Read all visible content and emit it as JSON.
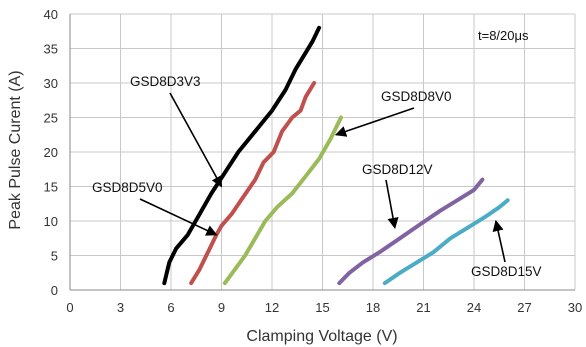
{
  "chart_data": {
    "type": "line",
    "title": "",
    "xlabel": "Clamping Voltage (V)",
    "ylabel": "Peak  Pulse Curent (A)",
    "xlim": [
      0,
      30
    ],
    "ylim": [
      0,
      40
    ],
    "xticks": [
      0,
      3,
      6,
      9,
      12,
      15,
      18,
      21,
      24,
      27,
      30
    ],
    "yticks": [
      0,
      5,
      10,
      15,
      20,
      25,
      30,
      35,
      40
    ],
    "grid": true,
    "annotation": "t=8/20μs",
    "series": [
      {
        "name": "GSD8D3V3",
        "color": "#000000",
        "points": [
          [
            5.6,
            1
          ],
          [
            5.9,
            4
          ],
          [
            6.3,
            6
          ],
          [
            7.0,
            8
          ],
          [
            7.7,
            11
          ],
          [
            8.4,
            14
          ],
          [
            9.2,
            17
          ],
          [
            10.0,
            20
          ],
          [
            11.0,
            23
          ],
          [
            12.0,
            26
          ],
          [
            12.8,
            29
          ],
          [
            13.4,
            32
          ],
          [
            13.9,
            34
          ],
          [
            14.4,
            36
          ],
          [
            14.8,
            38
          ]
        ]
      },
      {
        "name": "GSD8D5V0",
        "color": "#c0504d",
        "points": [
          [
            7.2,
            1
          ],
          [
            7.7,
            3
          ],
          [
            8.3,
            6
          ],
          [
            8.7,
            8
          ],
          [
            9.0,
            9.3
          ],
          [
            9.6,
            11
          ],
          [
            10.3,
            13.5
          ],
          [
            11.0,
            16
          ],
          [
            11.5,
            18.5
          ],
          [
            12.1,
            20
          ],
          [
            12.6,
            23
          ],
          [
            13.2,
            25
          ],
          [
            13.7,
            26
          ],
          [
            14.0,
            28
          ],
          [
            14.5,
            30
          ]
        ]
      },
      {
        "name": "GSD8D8V0",
        "color": "#9bbb59",
        "points": [
          [
            9.2,
            1
          ],
          [
            9.8,
            3
          ],
          [
            10.4,
            5
          ],
          [
            11.0,
            7.5
          ],
          [
            11.6,
            10
          ],
          [
            12.3,
            12
          ],
          [
            13.2,
            14
          ],
          [
            14.0,
            16.5
          ],
          [
            14.8,
            19
          ],
          [
            15.5,
            22
          ],
          [
            16.1,
            25
          ]
        ]
      },
      {
        "name": "GSD8D12V",
        "color": "#8064a2",
        "points": [
          [
            16.0,
            1
          ],
          [
            16.6,
            2.5
          ],
          [
            17.4,
            4
          ],
          [
            18.4,
            5.5
          ],
          [
            19.6,
            7.5
          ],
          [
            20.8,
            9.5
          ],
          [
            22.0,
            11.5
          ],
          [
            23.0,
            13
          ],
          [
            24.0,
            14.5
          ],
          [
            24.5,
            16
          ]
        ]
      },
      {
        "name": "GSD8D15V",
        "color": "#4bacc6",
        "points": [
          [
            18.7,
            1
          ],
          [
            19.6,
            2.5
          ],
          [
            20.6,
            4
          ],
          [
            21.6,
            5.5
          ],
          [
            22.6,
            7.5
          ],
          [
            23.6,
            9
          ],
          [
            24.6,
            10.5
          ],
          [
            25.5,
            12
          ],
          [
            26.0,
            13
          ]
        ]
      }
    ],
    "callouts": [
      {
        "text": "GSD8D3V3",
        "target": [
          9.0,
          15.0
        ]
      },
      {
        "text": "GSD8D8V0",
        "target": [
          15.8,
          22.5
        ]
      },
      {
        "text": "GSD8D5V0",
        "target": [
          8.7,
          8.0
        ]
      },
      {
        "text": "GSD8D12V",
        "target": [
          19.3,
          9.0
        ]
      },
      {
        "text": "GSD8D15V",
        "target": [
          25.3,
          10.0
        ]
      }
    ]
  }
}
